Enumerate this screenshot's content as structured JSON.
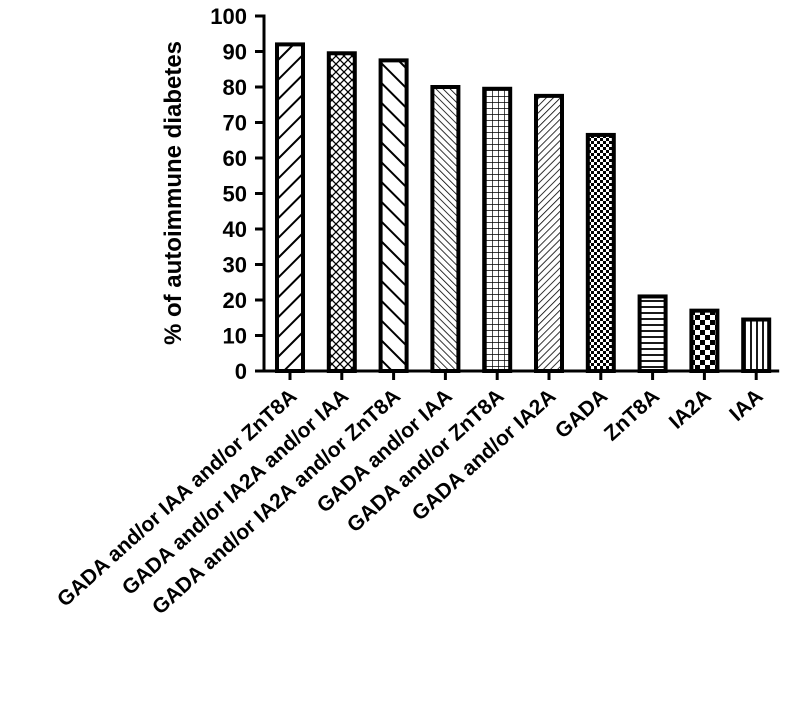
{
  "chart_data": {
    "type": "bar",
    "title": "",
    "xlabel": "",
    "ylabel": "% of autoimmune diabetes",
    "ylim": [
      0,
      100
    ],
    "yticks": [
      0,
      10,
      20,
      30,
      40,
      50,
      60,
      70,
      80,
      90,
      100
    ],
    "grid": false,
    "categories": [
      "GADA and/or IAA and/or ZnT8A",
      "GADA and/or IA2A and/or IAA",
      "GADA and/or IA2A and/or ZnT8A",
      "GADA and/or IAA",
      "GADA and/or ZnT8A",
      "GADA and/or IA2A",
      "GADA",
      "ZnT8A",
      "IA2A",
      "IAA"
    ],
    "values": [
      92,
      89.5,
      87.5,
      80,
      79.5,
      77.5,
      66.5,
      21,
      17,
      14.5
    ],
    "patterns": [
      "diagonal-right-wide",
      "crosshatch-diagonal",
      "diagonal-left-wide",
      "diagonal-left-fine",
      "grid-square",
      "diagonal-right-fine",
      "checker-fine",
      "horizontal-lines",
      "checker-coarse",
      "vertical-lines"
    ],
    "colors": {
      "stroke": "#000000",
      "fill": "#ffffff"
    }
  }
}
